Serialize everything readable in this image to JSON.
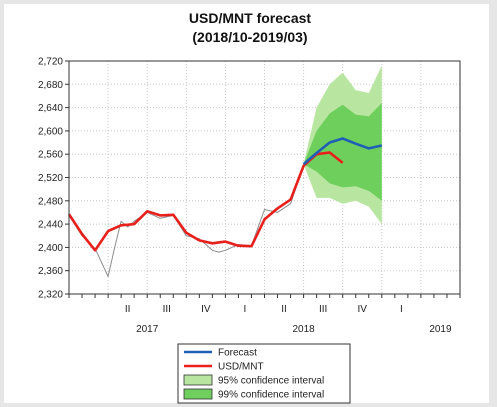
{
  "chart_data": {
    "type": "line",
    "title": "USD/MNT forecast",
    "subtitle": "(2018/10-2019/03)",
    "xlabel": "",
    "ylabel": "",
    "ylim": [
      2320,
      2720
    ],
    "yticks": [
      2320,
      2360,
      2400,
      2440,
      2480,
      2520,
      2560,
      2600,
      2640,
      2680,
      2720
    ],
    "ytick_labels": [
      "2,320",
      "2,360",
      "2,400",
      "2,440",
      "2,480",
      "2,520",
      "2,560",
      "2,600",
      "2,640",
      "2,680",
      "2,720"
    ],
    "xlim": [
      2016.75,
      2019.25
    ],
    "quarter_labels": [
      {
        "x": 2017.125,
        "label": "II"
      },
      {
        "x": 2017.375,
        "label": "III"
      },
      {
        "x": 2017.625,
        "label": "IV"
      },
      {
        "x": 2017.875,
        "label": "I"
      },
      {
        "x": 2018.125,
        "label": "II"
      },
      {
        "x": 2018.375,
        "label": "III"
      },
      {
        "x": 2018.625,
        "label": "IV"
      },
      {
        "x": 2018.875,
        "label": "I"
      }
    ],
    "year_labels": [
      {
        "x": 2017.25,
        "label": "2017"
      },
      {
        "x": 2018.25,
        "label": "2018"
      },
      {
        "x": 2019.125,
        "label": "2019"
      }
    ],
    "grid": true,
    "legend_position": "bottom-center",
    "series": [
      {
        "name": "USD/MNT",
        "kind": "line-thick",
        "color": "#e8201c",
        "x": [
          2016.75,
          2016.833,
          2016.917,
          2017.0,
          2017.083,
          2017.167,
          2017.25,
          2017.333,
          2017.417,
          2017.5,
          2017.583,
          2017.667,
          2017.75,
          2017.833,
          2017.917,
          2018.0,
          2018.083,
          2018.167,
          2018.25,
          2018.333,
          2018.417,
          2018.5
        ],
        "y": [
          2457,
          2423,
          2395,
          2428,
          2438,
          2440,
          2462,
          2455,
          2456,
          2425,
          2412,
          2407,
          2410,
          2403,
          2402,
          2448,
          2467,
          2482,
          2540,
          2560,
          2563,
          2545
        ]
      },
      {
        "name": "",
        "kind": "line-thin",
        "color": "#8c8c8c",
        "x": [
          2016.75,
          2016.833,
          2016.917,
          2017.0,
          2017.042,
          2017.083,
          2017.125,
          2017.167,
          2017.25,
          2017.333,
          2017.417,
          2017.5,
          2017.583,
          2017.667,
          2017.708,
          2017.75,
          2017.833,
          2017.917,
          2018.0,
          2018.083,
          2018.167,
          2018.25
        ],
        "y": [
          2455,
          2420,
          2398,
          2350,
          2400,
          2445,
          2435,
          2445,
          2460,
          2450,
          2455,
          2420,
          2415,
          2395,
          2392,
          2395,
          2405,
          2403,
          2465,
          2460,
          2475,
          2540
        ]
      },
      {
        "name": "Forecast",
        "kind": "line-thick",
        "color": "#1f5fb5",
        "x": [
          2018.25,
          2018.333,
          2018.417,
          2018.5,
          2018.583,
          2018.667,
          2018.75
        ],
        "y": [
          2543,
          2562,
          2580,
          2587,
          2578,
          2570,
          2575
        ]
      },
      {
        "name": "95% confidence interval",
        "kind": "band",
        "color": "#b8e6a0",
        "x": [
          2018.25,
          2018.333,
          2018.417,
          2018.5,
          2018.583,
          2018.667,
          2018.75
        ],
        "lower": [
          2543,
          2485,
          2485,
          2475,
          2480,
          2470,
          2440
        ],
        "upper": [
          2543,
          2640,
          2680,
          2700,
          2670,
          2665,
          2712
        ]
      },
      {
        "name": "99% confidence interval",
        "kind": "band",
        "color": "#6fcf5d",
        "x": [
          2018.25,
          2018.333,
          2018.417,
          2018.5,
          2018.583,
          2018.667,
          2018.75
        ],
        "lower": [
          2543,
          2530,
          2510,
          2503,
          2505,
          2497,
          2480
        ],
        "upper": [
          2543,
          2600,
          2630,
          2645,
          2628,
          2625,
          2648
        ]
      }
    ]
  }
}
